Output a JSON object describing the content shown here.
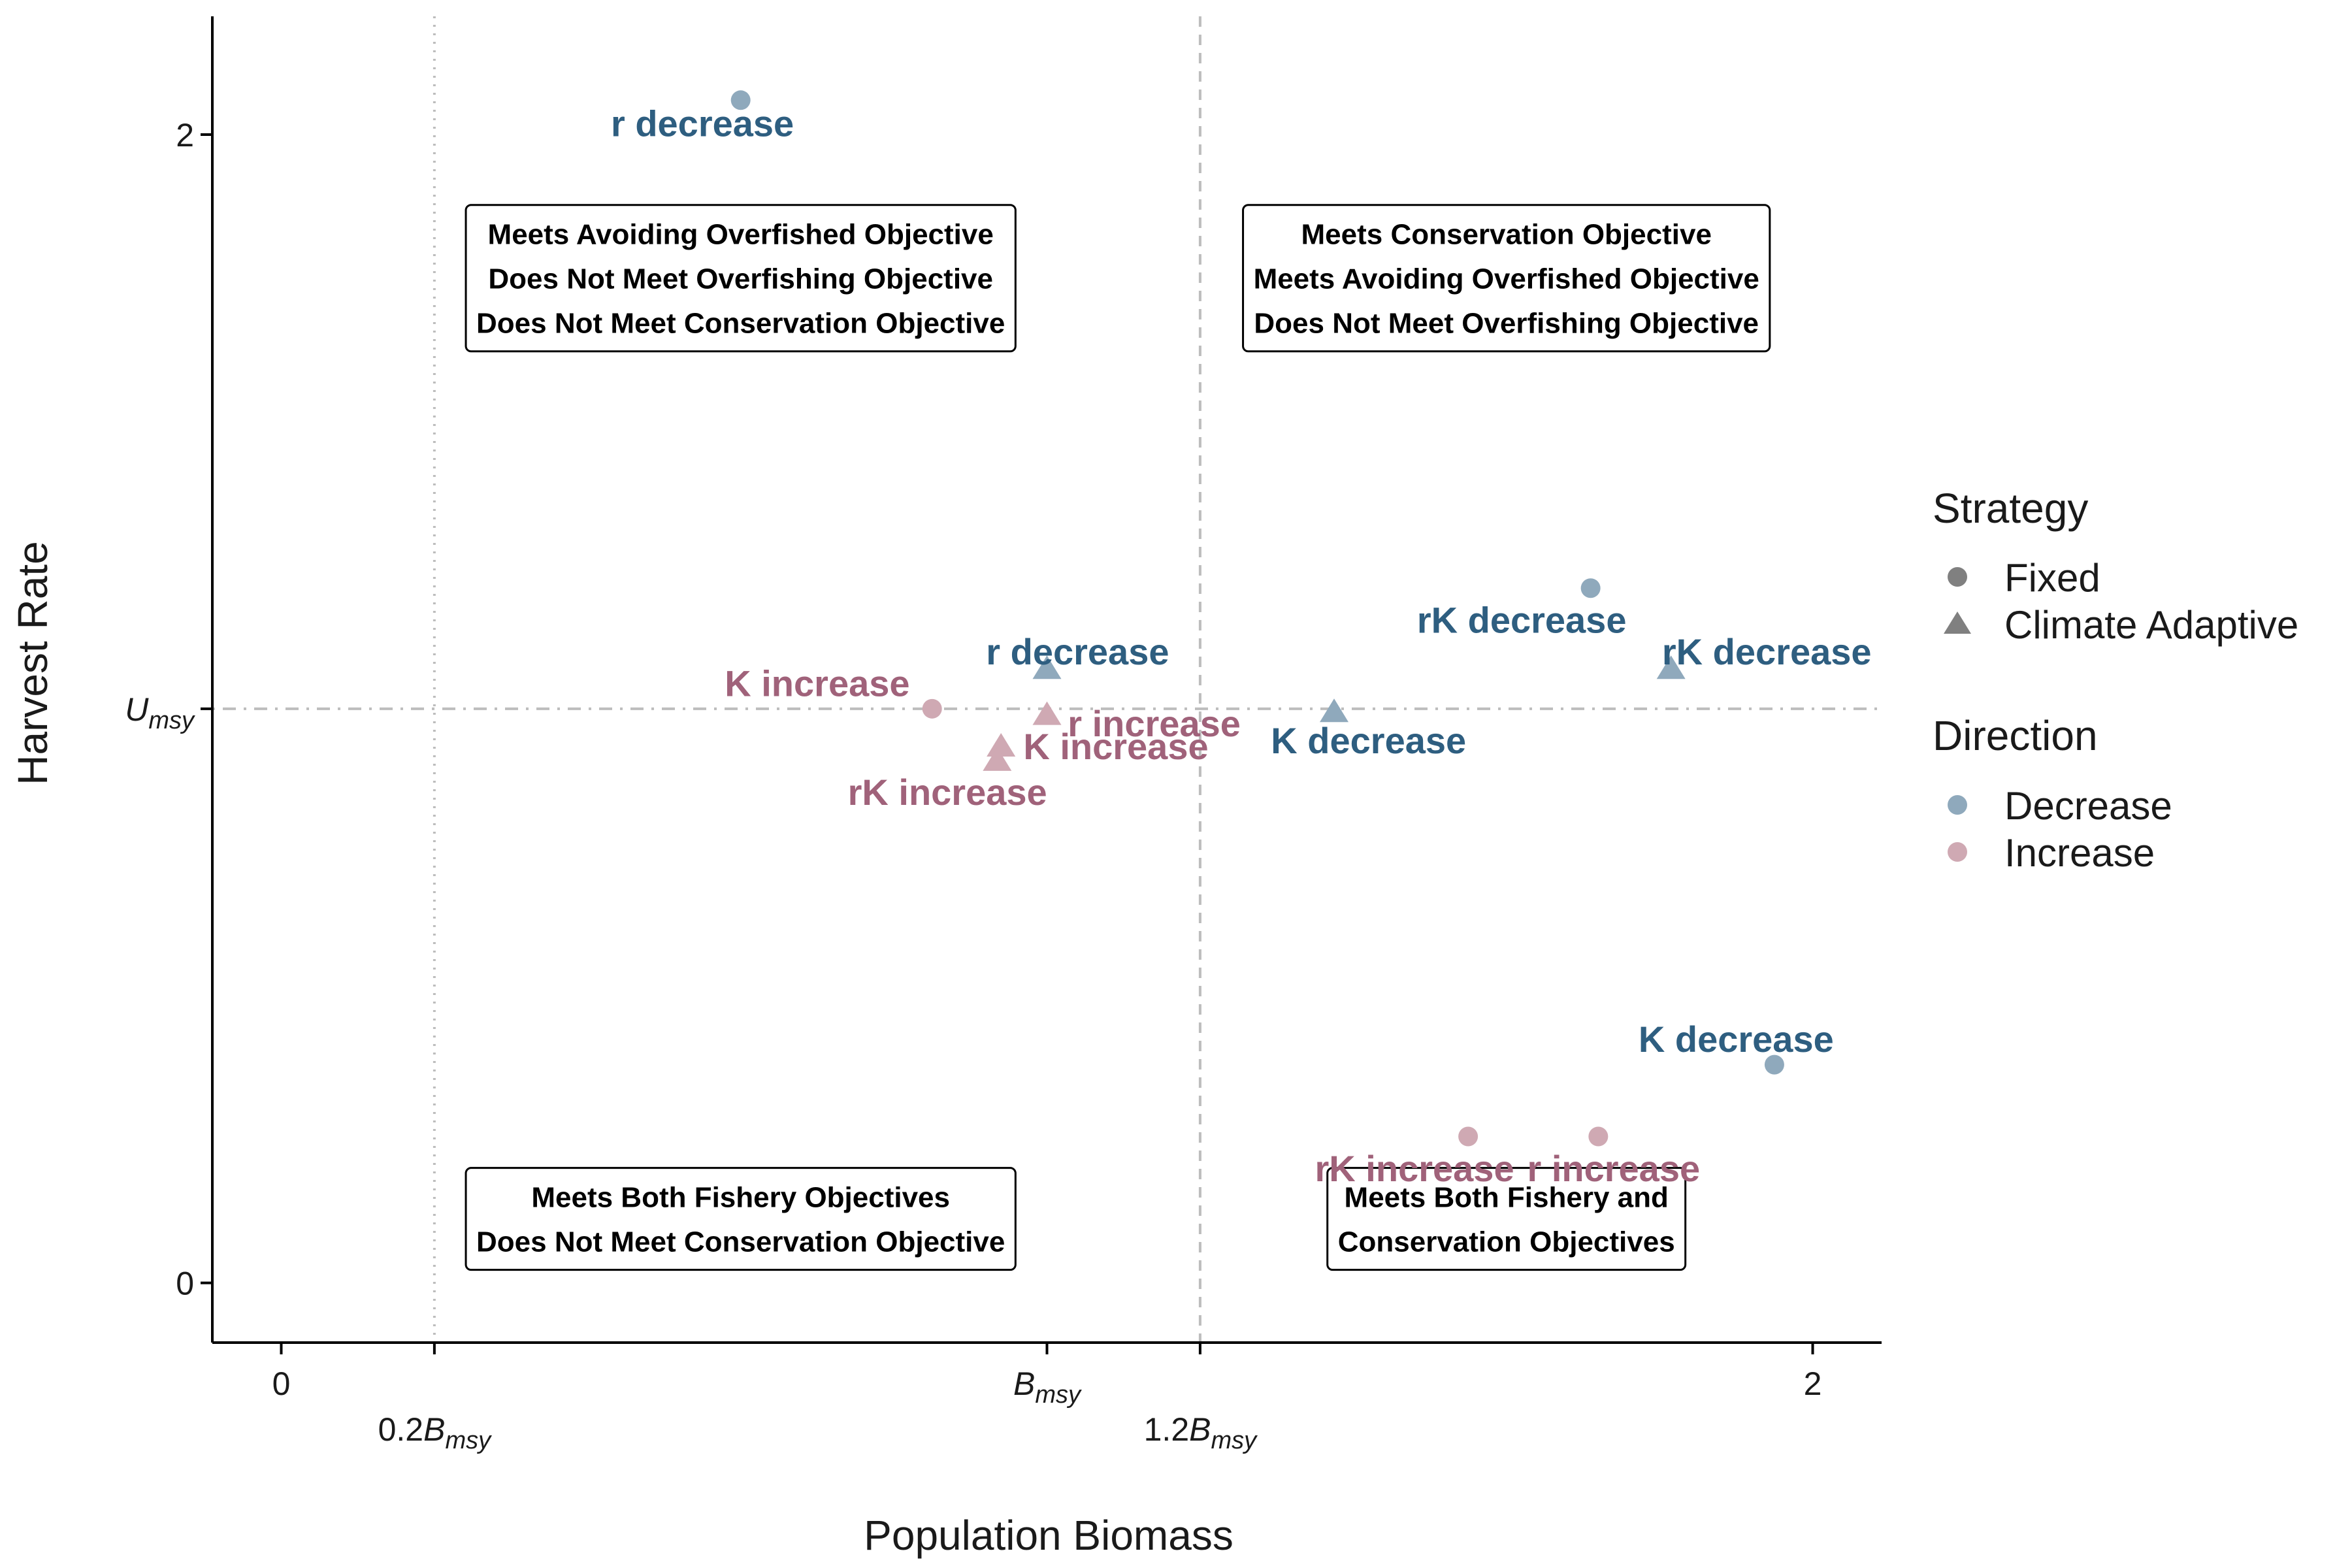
{
  "chart_data": {
    "type": "scatter",
    "xlabel": "Population Biomass",
    "ylabel": "Harvest Rate",
    "xlim": [
      -0.09,
      2.09
    ],
    "ylim": [
      -0.104,
      2.206
    ],
    "x_ticks": [
      {
        "value": 0,
        "main": "0",
        "sub": ""
      },
      {
        "value": 1,
        "main": "B",
        "sub": "msy",
        "italic": true
      },
      {
        "value": 2,
        "main": "2",
        "sub": ""
      }
    ],
    "x_ticks_secondary": [
      {
        "value": 0.2,
        "prefix": "0.2",
        "main": "B",
        "sub": "msy"
      },
      {
        "value": 1.2,
        "prefix": "1.2",
        "main": "B",
        "sub": "msy"
      }
    ],
    "y_ticks": [
      {
        "value": 0,
        "main": "0",
        "sub": ""
      },
      {
        "value": 1,
        "main": "U",
        "sub": "msy",
        "italic": true
      },
      {
        "value": 2,
        "main": "2",
        "sub": ""
      }
    ],
    "reference_lines": [
      {
        "axis": "x",
        "value": 0.2,
        "style": "dotted"
      },
      {
        "axis": "x",
        "value": 1.2,
        "style": "dashed"
      },
      {
        "axis": "y",
        "value": 1.0,
        "style": "dotdash"
      }
    ],
    "quadrant_boxes": [
      {
        "x": 0.6,
        "y": 1.75,
        "lines": [
          "Meets Avoiding Overfished Objective",
          "Does Not Meet Overfishing Objective",
          "Does Not Meet Conservation Objective"
        ]
      },
      {
        "x": 1.6,
        "y": 1.75,
        "lines": [
          "Meets Conservation Objective",
          "Meets Avoiding Overfished Objective",
          "Does Not Meet Overfishing Objective"
        ]
      },
      {
        "x": 0.6,
        "y": 0.05,
        "lines": [
          "Meets Both Fishery Objectives",
          "Does Not Meet Conservation Objective"
        ]
      },
      {
        "x": 1.6,
        "y": 0.05,
        "lines": [
          "Meets Both Fishery and",
          "Conservation Objectives"
        ]
      }
    ],
    "points": [
      {
        "label": "r decrease",
        "strategy": "Fixed",
        "direction": "Decrease",
        "x": 0.6,
        "y": 2.06,
        "lx": 0.55,
        "ly": 2.02
      },
      {
        "label": "K increase",
        "strategy": "Fixed",
        "direction": "Increase",
        "x": 0.85,
        "y": 1.0,
        "lx": 0.7,
        "ly": 1.045
      },
      {
        "label": "rK decrease",
        "strategy": "Fixed",
        "direction": "Decrease",
        "x": 1.71,
        "y": 1.21,
        "lx": 1.62,
        "ly": 1.155
      },
      {
        "label": "K decrease",
        "strategy": "Fixed",
        "direction": "Decrease",
        "x": 1.95,
        "y": 0.38,
        "lx": 1.9,
        "ly": 0.425
      },
      {
        "label": "rK increase",
        "strategy": "Fixed",
        "direction": "Increase",
        "x": 1.55,
        "y": 0.255,
        "lx": 1.48,
        "ly": 0.2
      },
      {
        "label": "r increase",
        "strategy": "Fixed",
        "direction": "Increase",
        "x": 1.72,
        "y": 0.255,
        "lx": 1.74,
        "ly": 0.2
      },
      {
        "label": "r decrease",
        "strategy": "Climate Adaptive",
        "direction": "Decrease",
        "x": 1.0,
        "y": 1.07,
        "lx": 1.04,
        "ly": 1.1
      },
      {
        "label": "r increase",
        "strategy": "Climate Adaptive",
        "direction": "Increase",
        "x": 1.0,
        "y": 0.99,
        "lx": 1.14,
        "ly": 0.975
      },
      {
        "label": "K increase",
        "strategy": "Climate Adaptive",
        "direction": "Increase",
        "x": 0.94,
        "y": 0.935,
        "lx": 1.09,
        "ly": 0.935
      },
      {
        "label": "rK increase",
        "strategy": "Climate Adaptive",
        "direction": "Increase",
        "x": 0.935,
        "y": 0.91,
        "lx": 0.87,
        "ly": 0.855
      },
      {
        "label": "K decrease",
        "strategy": "Climate Adaptive",
        "direction": "Decrease",
        "x": 1.375,
        "y": 0.995,
        "lx": 1.42,
        "ly": 0.945
      },
      {
        "label": "rK decrease",
        "strategy": "Climate Adaptive",
        "direction": "Decrease",
        "x": 1.815,
        "y": 1.07,
        "lx": 1.94,
        "ly": 1.1
      }
    ],
    "legend": {
      "placement": "right",
      "strategy_title": "Strategy",
      "strategy_items": [
        {
          "shape": "circle",
          "label": "Fixed"
        },
        {
          "shape": "triangle",
          "label": "Climate Adaptive"
        }
      ],
      "direction_title": "Direction",
      "direction_items": [
        {
          "color_key": "decrease_point",
          "label": "Decrease"
        },
        {
          "color_key": "increase_point",
          "label": "Increase"
        }
      ]
    },
    "grid": false,
    "colors": {
      "decrease_point": "#8fa9bc",
      "decrease_text": "#2e5e80",
      "increase_point": "#cfa9b3",
      "increase_text": "#a0627a",
      "legend_shape": "#808080",
      "refline": "#bdbdbd",
      "axis": "#000000"
    }
  }
}
